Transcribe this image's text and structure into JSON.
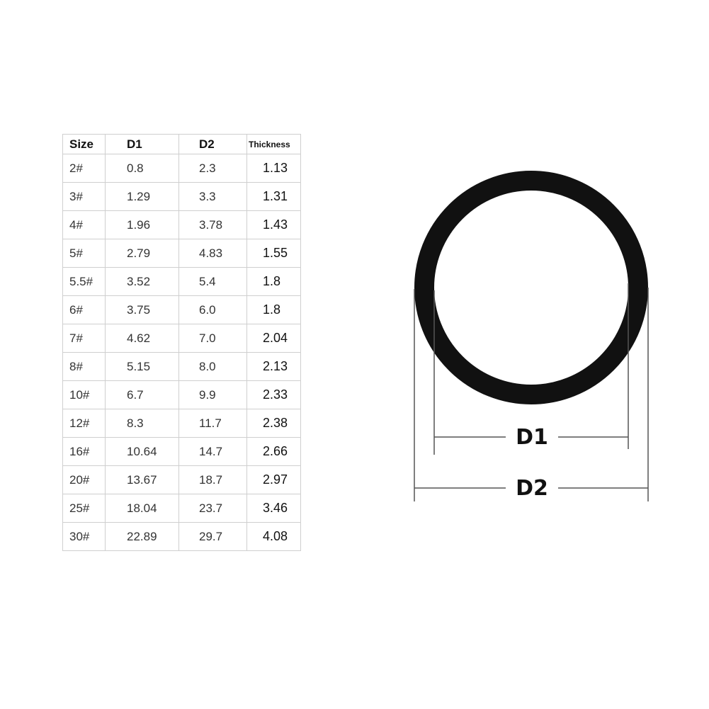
{
  "table": {
    "headers": [
      "Size",
      "D1",
      "D2",
      "Thickness"
    ],
    "rows": [
      [
        "2#",
        "0.8",
        "2.3",
        "1.13"
      ],
      [
        "3#",
        "1.29",
        "3.3",
        "1.31"
      ],
      [
        "4#",
        "1.96",
        "3.78",
        "1.43"
      ],
      [
        "5#",
        "2.79",
        "4.83",
        "1.55"
      ],
      [
        "5.5#",
        "3.52",
        "5.4",
        "1.8"
      ],
      [
        "6#",
        "3.75",
        "6.0",
        "1.8"
      ],
      [
        "7#",
        "4.62",
        "7.0",
        "2.04"
      ],
      [
        "8#",
        "5.15",
        "8.0",
        "2.13"
      ],
      [
        "10#",
        "6.7",
        "9.9",
        "2.33"
      ],
      [
        "12#",
        "8.3",
        "11.7",
        "2.38"
      ],
      [
        "16#",
        "10.64",
        "14.7",
        "2.66"
      ],
      [
        "20#",
        "13.67",
        "18.7",
        "2.97"
      ],
      [
        "25#",
        "18.04",
        "23.7",
        "3.46"
      ],
      [
        "30#",
        "22.89",
        "29.7",
        "4.08"
      ]
    ]
  },
  "diagram": {
    "inner_diameter_label": "D1",
    "outer_diameter_label": "D2",
    "ring_color": "#111111",
    "line_color": "#555555"
  }
}
